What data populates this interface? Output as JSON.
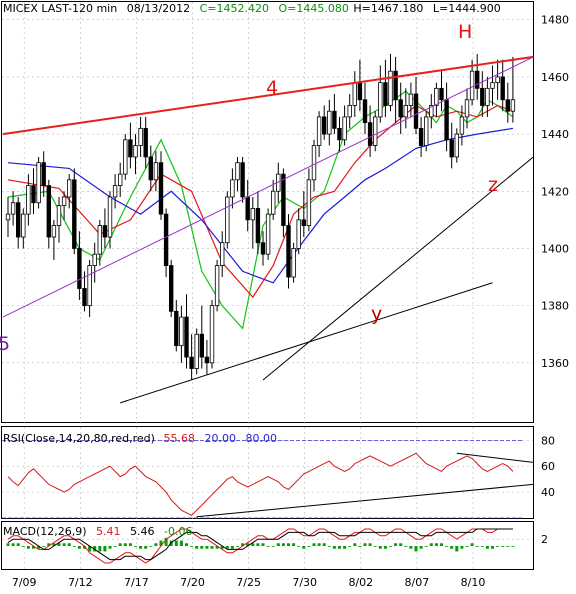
{
  "header": {
    "symbol_interval": "MICEX LAST-120 min",
    "date": "08/13/2012",
    "close": "C=1452.420",
    "open": "O=1445.080",
    "high": "H=1467.180",
    "low": "L=1444.900"
  },
  "annotations": {
    "h": "H",
    "four": "4",
    "five": "5",
    "y": "y",
    "z": "z"
  },
  "rsi_header": {
    "label": "RSI(Close,14,20,80,red,red)",
    "value": "55.68",
    "lower": "20.00",
    "upper": "80.00"
  },
  "macd_header": {
    "label": "MACD(12,26,9)",
    "v1": "5.41",
    "v2": "5.46",
    "v3": "-0.06"
  },
  "colors": {
    "red_line": "#e8201a",
    "purple_line": "#9b30c9",
    "ma_green": "#13c313",
    "ma_red": "#e4141b",
    "ma_blue": "#1b1bd6",
    "rsi_line": "#d21a1a",
    "rsi_levels": "#3a2fd6",
    "macd_hist": "#0a9a0a",
    "label_h": "#e01414",
    "label_four": "#e01414",
    "label_z": "#e01414",
    "label_y": "#c00000",
    "label_five": "#7a1fa0"
  },
  "chart_data": [
    {
      "type": "candlestick",
      "title": "MICEX LAST-120 min",
      "x_tick_labels": [
        "7/09",
        "7/12",
        "7/17",
        "7/20",
        "7/25",
        "7/30",
        "8/02",
        "8/07",
        "8/10"
      ],
      "y_ticks": [
        1360,
        1380,
        1400,
        1420,
        1440,
        1460,
        1480
      ],
      "ylim": [
        1340,
        1482
      ],
      "n_bars": 100,
      "y_scale": "linear",
      "grid": true,
      "ohlc": [
        [
          1410,
          1418,
          1404,
          1412
        ],
        [
          1412,
          1420,
          1408,
          1416
        ],
        [
          1416,
          1418,
          1400,
          1404
        ],
        [
          1404,
          1414,
          1400,
          1412
        ],
        [
          1412,
          1426,
          1408,
          1422
        ],
        [
          1422,
          1428,
          1412,
          1416
        ],
        [
          1416,
          1432,
          1414,
          1430
        ],
        [
          1430,
          1434,
          1418,
          1422
        ],
        [
          1422,
          1424,
          1400,
          1404
        ],
        [
          1404,
          1410,
          1396,
          1408
        ],
        [
          1408,
          1418,
          1402,
          1415
        ],
        [
          1415,
          1420,
          1410,
          1418
        ],
        [
          1418,
          1426,
          1414,
          1424
        ],
        [
          1424,
          1428,
          1398,
          1400
        ],
        [
          1400,
          1406,
          1382,
          1386
        ],
        [
          1386,
          1392,
          1378,
          1380
        ],
        [
          1380,
          1396,
          1376,
          1394
        ],
        [
          1394,
          1402,
          1388,
          1398
        ],
        [
          1398,
          1410,
          1394,
          1408
        ],
        [
          1408,
          1414,
          1400,
          1404
        ],
        [
          1404,
          1420,
          1400,
          1418
        ],
        [
          1418,
          1426,
          1414,
          1422
        ],
        [
          1422,
          1430,
          1418,
          1426
        ],
        [
          1426,
          1440,
          1424,
          1438
        ],
        [
          1438,
          1444,
          1428,
          1432
        ],
        [
          1432,
          1440,
          1426,
          1436
        ],
        [
          1436,
          1446,
          1432,
          1442
        ],
        [
          1442,
          1446,
          1428,
          1432
        ],
        [
          1432,
          1436,
          1420,
          1424
        ],
        [
          1424,
          1434,
          1420,
          1430
        ],
        [
          1430,
          1434,
          1410,
          1412
        ],
        [
          1412,
          1414,
          1390,
          1394
        ],
        [
          1394,
          1396,
          1376,
          1378
        ],
        [
          1378,
          1382,
          1364,
          1366
        ],
        [
          1366,
          1380,
          1360,
          1376
        ],
        [
          1376,
          1384,
          1358,
          1362
        ],
        [
          1362,
          1370,
          1354,
          1358
        ],
        [
          1358,
          1372,
          1356,
          1370
        ],
        [
          1370,
          1380,
          1358,
          1362
        ],
        [
          1362,
          1368,
          1356,
          1360
        ],
        [
          1360,
          1382,
          1358,
          1380
        ],
        [
          1380,
          1396,
          1378,
          1394
        ],
        [
          1394,
          1406,
          1390,
          1402
        ],
        [
          1402,
          1420,
          1400,
          1418
        ],
        [
          1418,
          1428,
          1414,
          1424
        ],
        [
          1424,
          1432,
          1420,
          1430
        ],
        [
          1430,
          1432,
          1416,
          1418
        ],
        [
          1418,
          1424,
          1406,
          1410
        ],
        [
          1410,
          1418,
          1400,
          1414
        ],
        [
          1414,
          1420,
          1398,
          1402
        ],
        [
          1402,
          1406,
          1394,
          1398
        ],
        [
          1398,
          1414,
          1396,
          1412
        ],
        [
          1412,
          1424,
          1410,
          1420
        ],
        [
          1420,
          1430,
          1416,
          1426
        ],
        [
          1426,
          1428,
          1404,
          1408
        ],
        [
          1408,
          1412,
          1386,
          1390
        ],
        [
          1390,
          1402,
          1388,
          1400
        ],
        [
          1400,
          1414,
          1398,
          1410
        ],
        [
          1410,
          1420,
          1404,
          1408
        ],
        [
          1408,
          1428,
          1406,
          1424
        ],
        [
          1424,
          1438,
          1420,
          1436
        ],
        [
          1436,
          1448,
          1432,
          1446
        ],
        [
          1446,
          1450,
          1438,
          1440
        ],
        [
          1440,
          1452,
          1436,
          1448
        ],
        [
          1448,
          1454,
          1440,
          1442
        ],
        [
          1442,
          1446,
          1434,
          1438
        ],
        [
          1438,
          1450,
          1436,
          1446
        ],
        [
          1446,
          1454,
          1442,
          1450
        ],
        [
          1450,
          1462,
          1446,
          1458
        ],
        [
          1458,
          1466,
          1448,
          1452
        ],
        [
          1452,
          1458,
          1440,
          1444
        ],
        [
          1444,
          1450,
          1432,
          1436
        ],
        [
          1436,
          1448,
          1434,
          1446
        ],
        [
          1446,
          1464,
          1444,
          1458
        ],
        [
          1458,
          1466,
          1446,
          1450
        ],
        [
          1450,
          1468,
          1448,
          1462
        ],
        [
          1462,
          1467,
          1444,
          1452
        ],
        [
          1452,
          1458,
          1440,
          1446
        ],
        [
          1446,
          1456,
          1442,
          1450
        ],
        [
          1450,
          1458,
          1446,
          1454
        ],
        [
          1454,
          1460,
          1440,
          1442
        ],
        [
          1442,
          1446,
          1432,
          1436
        ],
        [
          1436,
          1448,
          1434,
          1446
        ],
        [
          1446,
          1454,
          1442,
          1450
        ],
        [
          1450,
          1458,
          1446,
          1456
        ],
        [
          1456,
          1462,
          1448,
          1452
        ],
        [
          1452,
          1458,
          1434,
          1438
        ],
        [
          1438,
          1444,
          1428,
          1432
        ],
        [
          1432,
          1442,
          1430,
          1440
        ],
        [
          1440,
          1450,
          1436,
          1446
        ],
        [
          1446,
          1456,
          1442,
          1452
        ],
        [
          1452,
          1466,
          1450,
          1462
        ],
        [
          1462,
          1468,
          1452,
          1456
        ],
        [
          1456,
          1462,
          1446,
          1450
        ],
        [
          1450,
          1460,
          1446,
          1456
        ],
        [
          1456,
          1464,
          1450,
          1458
        ],
        [
          1458,
          1466,
          1452,
          1460
        ],
        [
          1460,
          1466,
          1448,
          1452
        ],
        [
          1452,
          1458,
          1444,
          1448
        ],
        [
          1448,
          1467,
          1444,
          1452
        ]
      ],
      "moving_averages": [
        {
          "color": "green",
          "points": [
            [
              0,
              1418
            ],
            [
              8,
              1420
            ],
            [
              14,
              1400
            ],
            [
              18,
              1396
            ],
            [
              24,
              1418
            ],
            [
              30,
              1438
            ],
            [
              34,
              1422
            ],
            [
              38,
              1392
            ],
            [
              42,
              1380
            ],
            [
              46,
              1372
            ],
            [
              50,
              1408
            ],
            [
              54,
              1418
            ],
            [
              58,
              1414
            ],
            [
              62,
              1420
            ],
            [
              66,
              1440
            ],
            [
              70,
              1446
            ],
            [
              74,
              1450
            ],
            [
              78,
              1455
            ],
            [
              82,
              1448
            ],
            [
              84,
              1444
            ],
            [
              86,
              1450
            ],
            [
              88,
              1448
            ],
            [
              90,
              1444
            ],
            [
              92,
              1446
            ],
            [
              94,
              1452
            ],
            [
              96,
              1450
            ],
            [
              99,
              1446
            ]
          ]
        },
        {
          "color": "red",
          "points": [
            [
              0,
              1424
            ],
            [
              10,
              1421
            ],
            [
              18,
              1405
            ],
            [
              24,
              1410
            ],
            [
              30,
              1426
            ],
            [
              36,
              1420
            ],
            [
              42,
              1395
            ],
            [
              48,
              1383
            ],
            [
              52,
              1394
            ],
            [
              56,
              1412
            ],
            [
              60,
              1418
            ],
            [
              64,
              1420
            ],
            [
              68,
              1430
            ],
            [
              72,
              1438
            ],
            [
              76,
              1444
            ],
            [
              80,
              1450
            ],
            [
              84,
              1446
            ],
            [
              88,
              1448
            ],
            [
              92,
              1446
            ],
            [
              96,
              1450
            ],
            [
              99,
              1448
            ]
          ]
        },
        {
          "color": "blue",
          "points": [
            [
              0,
              1430
            ],
            [
              12,
              1428
            ],
            [
              20,
              1418
            ],
            [
              26,
              1412
            ],
            [
              32,
              1420
            ],
            [
              38,
              1410
            ],
            [
              46,
              1392
            ],
            [
              52,
              1388
            ],
            [
              56,
              1398
            ],
            [
              62,
              1412
            ],
            [
              66,
              1418
            ],
            [
              70,
              1424
            ],
            [
              74,
              1428
            ],
            [
              80,
              1435
            ],
            [
              86,
              1438
            ],
            [
              92,
              1440
            ],
            [
              99,
              1442
            ]
          ]
        }
      ],
      "trend_lines": [
        {
          "color": "red",
          "from": [
            -1,
            1440
          ],
          "to": [
            103,
            1467
          ]
        },
        {
          "color": "purple",
          "from": [
            -1,
            1376
          ],
          "to": [
            103,
            1467
          ]
        },
        {
          "color": "black",
          "from": [
            50,
            1354
          ],
          "to": [
            103,
            1432
          ]
        },
        {
          "color": "black",
          "from": [
            22,
            1346
          ],
          "to": [
            95,
            1388
          ]
        }
      ]
    },
    {
      "type": "line",
      "title": "RSI(Close,14,20,80,red,red)",
      "ylim": [
        20,
        88
      ],
      "y_ticks": [
        40,
        60,
        80
      ],
      "reference_lines": [
        20,
        80
      ],
      "last_value": 55.68,
      "values": [
        52,
        48,
        45,
        50,
        55,
        58,
        54,
        50,
        46,
        44,
        42,
        40,
        42,
        46,
        48,
        50,
        52,
        54,
        56,
        58,
        60,
        56,
        52,
        54,
        58,
        60,
        56,
        52,
        50,
        48,
        44,
        40,
        34,
        30,
        26,
        24,
        22,
        26,
        30,
        34,
        38,
        42,
        46,
        50,
        52,
        48,
        46,
        44,
        46,
        48,
        50,
        52,
        50,
        48,
        44,
        42,
        46,
        50,
        54,
        56,
        58,
        60,
        62,
        64,
        60,
        58,
        56,
        58,
        62,
        64,
        66,
        68,
        66,
        64,
        62,
        60,
        62,
        64,
        66,
        68,
        70,
        66,
        62,
        60,
        58,
        56,
        60,
        62,
        64,
        66,
        68,
        66,
        62,
        58,
        56,
        58,
        60,
        62,
        60,
        56
      ],
      "trend_lines": [
        {
          "color": "black",
          "from": [
            88,
            70
          ],
          "to": [
            103,
            63
          ]
        },
        {
          "color": "black",
          "from": [
            37,
            21
          ],
          "to": [
            103,
            46
          ]
        }
      ]
    },
    {
      "type": "macd",
      "title": "MACD(12,26,9)",
      "y_ticks": [
        2
      ],
      "ylim": [
        -6,
        6
      ],
      "macd": [
        2,
        3,
        3,
        2,
        1,
        0,
        -1,
        -1,
        0,
        1,
        2,
        3,
        3,
        2,
        1,
        0,
        -2,
        -3,
        -4,
        -5,
        -5,
        -4,
        -3,
        -2,
        -2,
        -3,
        -4,
        -5,
        -4,
        -2,
        0,
        2,
        3,
        4,
        5,
        5,
        4,
        3,
        2,
        2,
        1,
        0,
        -1,
        -2,
        -2,
        -1,
        0,
        1,
        2,
        3,
        3,
        2,
        2,
        3,
        4,
        5,
        5,
        4,
        3,
        3,
        4,
        5,
        5,
        4,
        3,
        2,
        2,
        3,
        4,
        4,
        5,
        5,
        4,
        3,
        3,
        4,
        5,
        5,
        4,
        3,
        2,
        2,
        3,
        4,
        5,
        5,
        4,
        3,
        2,
        3,
        4,
        5,
        5,
        5,
        4,
        4,
        5,
        5,
        5,
        5
      ],
      "signal": [
        1,
        2,
        2,
        2,
        2,
        1,
        0,
        -1,
        -1,
        0,
        1,
        2,
        2,
        2,
        2,
        1,
        0,
        -1,
        -2,
        -3,
        -4,
        -4,
        -4,
        -3,
        -3,
        -3,
        -3,
        -4,
        -4,
        -3,
        -2,
        -1,
        1,
        2,
        3,
        4,
        4,
        4,
        3,
        3,
        2,
        1,
        0,
        -1,
        -1,
        -1,
        -1,
        0,
        1,
        2,
        2,
        2,
        2,
        2,
        3,
        4,
        4,
        4,
        4,
        3,
        3,
        4,
        4,
        4,
        4,
        3,
        3,
        3,
        3,
        4,
        4,
        4,
        4,
        4,
        4,
        4,
        4,
        4,
        4,
        4,
        4,
        3,
        3,
        3,
        4,
        4,
        4,
        4,
        4,
        4,
        4,
        4,
        5,
        5,
        5,
        5,
        5,
        5,
        5,
        5
      ],
      "last_values": {
        "macd": 5.41,
        "signal": 5.46,
        "histogram": -0.06
      }
    }
  ]
}
